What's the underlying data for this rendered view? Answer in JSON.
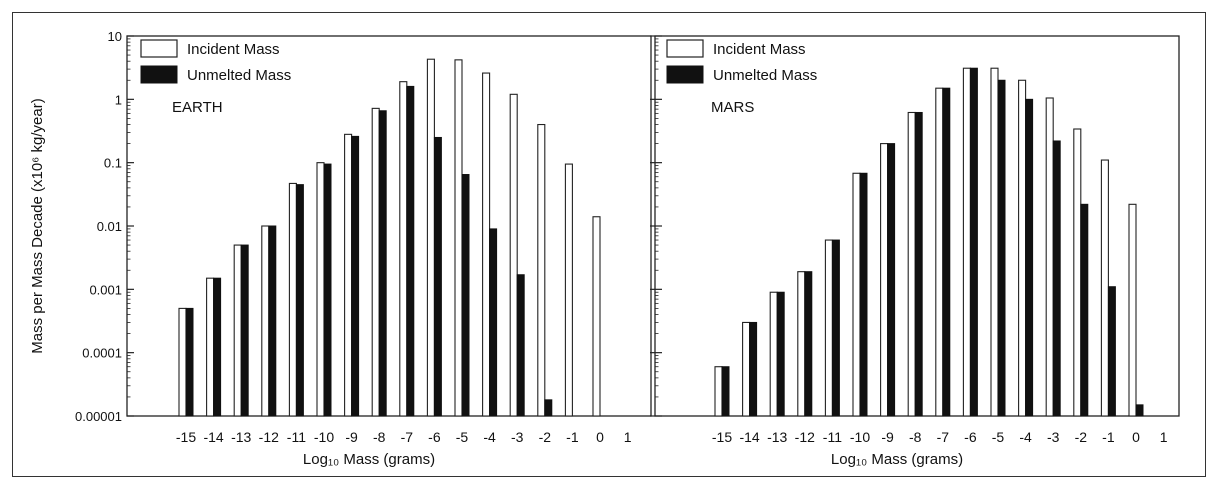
{
  "chart_data": [
    {
      "type": "bar",
      "panel_label": "EARTH",
      "ylabel": "Mass per Mass Decade (x10⁶ kg/year)",
      "xlabel": "Log₁₀ Mass (grams)",
      "y_scale": "log",
      "ylim": [
        1e-05,
        10
      ],
      "y_ticks": [
        "10",
        "1",
        "0.1",
        "0.01",
        "0.001",
        "0.0001",
        "0.00001"
      ],
      "categories": [
        "-15",
        "-14",
        "-13",
        "-12",
        "-11",
        "-10",
        "-9",
        "-8",
        "-7",
        "-6",
        "-5",
        "-4",
        "-3",
        "-2",
        "-1",
        "0",
        "1"
      ],
      "series": [
        {
          "name": "Incident Mass",
          "color": "#ffffff",
          "values": [
            0.0005,
            0.0015,
            0.005,
            0.01,
            0.047,
            0.1,
            0.28,
            0.72,
            1.9,
            4.3,
            4.2,
            2.6,
            1.2,
            0.4,
            0.095,
            0.014,
            null
          ]
        },
        {
          "name": "Unmelted Mass",
          "color": "#111111",
          "values": [
            0.0005,
            0.0015,
            0.005,
            0.01,
            0.045,
            0.095,
            0.26,
            0.66,
            1.6,
            0.25,
            0.065,
            0.009,
            0.0017,
            1.8e-05,
            null,
            null,
            null
          ]
        }
      ],
      "legend_position": "top-left"
    },
    {
      "type": "bar",
      "panel_label": "MARS",
      "xlabel": "Log₁₀ Mass (grams)",
      "y_scale": "log",
      "ylim": [
        1e-05,
        10
      ],
      "categories": [
        "-15",
        "-14",
        "-13",
        "-12",
        "-11",
        "-10",
        "-9",
        "-8",
        "-7",
        "-6",
        "-5",
        "-4",
        "-3",
        "-2",
        "-1",
        "0",
        "1"
      ],
      "series": [
        {
          "name": "Incident Mass",
          "color": "#ffffff",
          "values": [
            6e-05,
            0.0003,
            0.0009,
            0.0019,
            0.006,
            0.068,
            0.2,
            0.62,
            1.5,
            3.1,
            3.1,
            2.0,
            1.05,
            0.34,
            0.11,
            0.022,
            null
          ]
        },
        {
          "name": "Unmelted Mass",
          "color": "#111111",
          "values": [
            6e-05,
            0.0003,
            0.0009,
            0.0019,
            0.006,
            0.068,
            0.2,
            0.62,
            1.5,
            3.1,
            2.0,
            1.0,
            0.22,
            0.022,
            0.0011,
            1.5e-05,
            null
          ]
        }
      ],
      "legend_position": "top-left"
    }
  ]
}
